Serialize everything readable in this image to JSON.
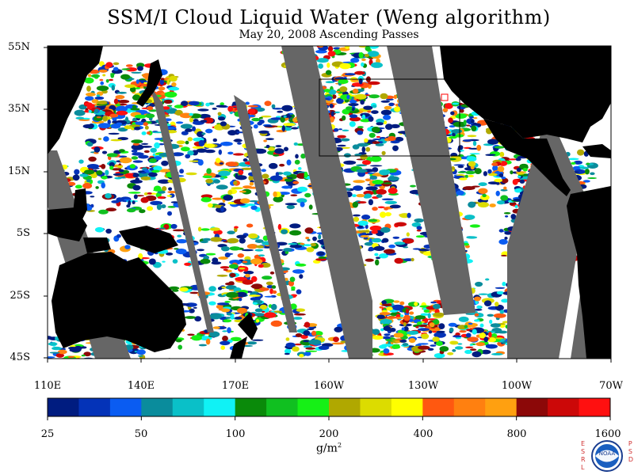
{
  "header": {
    "title": "SSM/I Cloud Liquid Water (Weng algorithm)",
    "subtitle": "May 20, 2008  Ascending Passes"
  },
  "lat_labels": [
    "55N",
    "35N",
    "15N",
    "5S",
    "25S",
    "45S"
  ],
  "lon_labels": [
    "110E",
    "140E",
    "170E",
    "160W",
    "130W",
    "100W",
    "70W"
  ],
  "colorbar": {
    "labels": [
      "25",
      "50",
      "100",
      "200",
      "400",
      "800",
      "1600"
    ],
    "units_base": "g/m",
    "units_sup": "2",
    "colors": [
      "#001c80",
      "#0433b8",
      "#0a5cf2",
      "#0a8c9c",
      "#0ac0c8",
      "#10f2f5",
      "#0a8a0a",
      "#10c020",
      "#16f016",
      "#b0a800",
      "#dcdc00",
      "#ffff00",
      "#ff5810",
      "#ff8010",
      "#ffa010",
      "#8c0808",
      "#cc0808",
      "#ff1010"
    ]
  },
  "colors": {
    "land": "#000000",
    "no_data_swath": "#666666",
    "clear": "#ffffff"
  },
  "logo": {
    "left_letters": "ESRL",
    "right_letters": "PSD",
    "emblem_text": "NOAA"
  }
}
